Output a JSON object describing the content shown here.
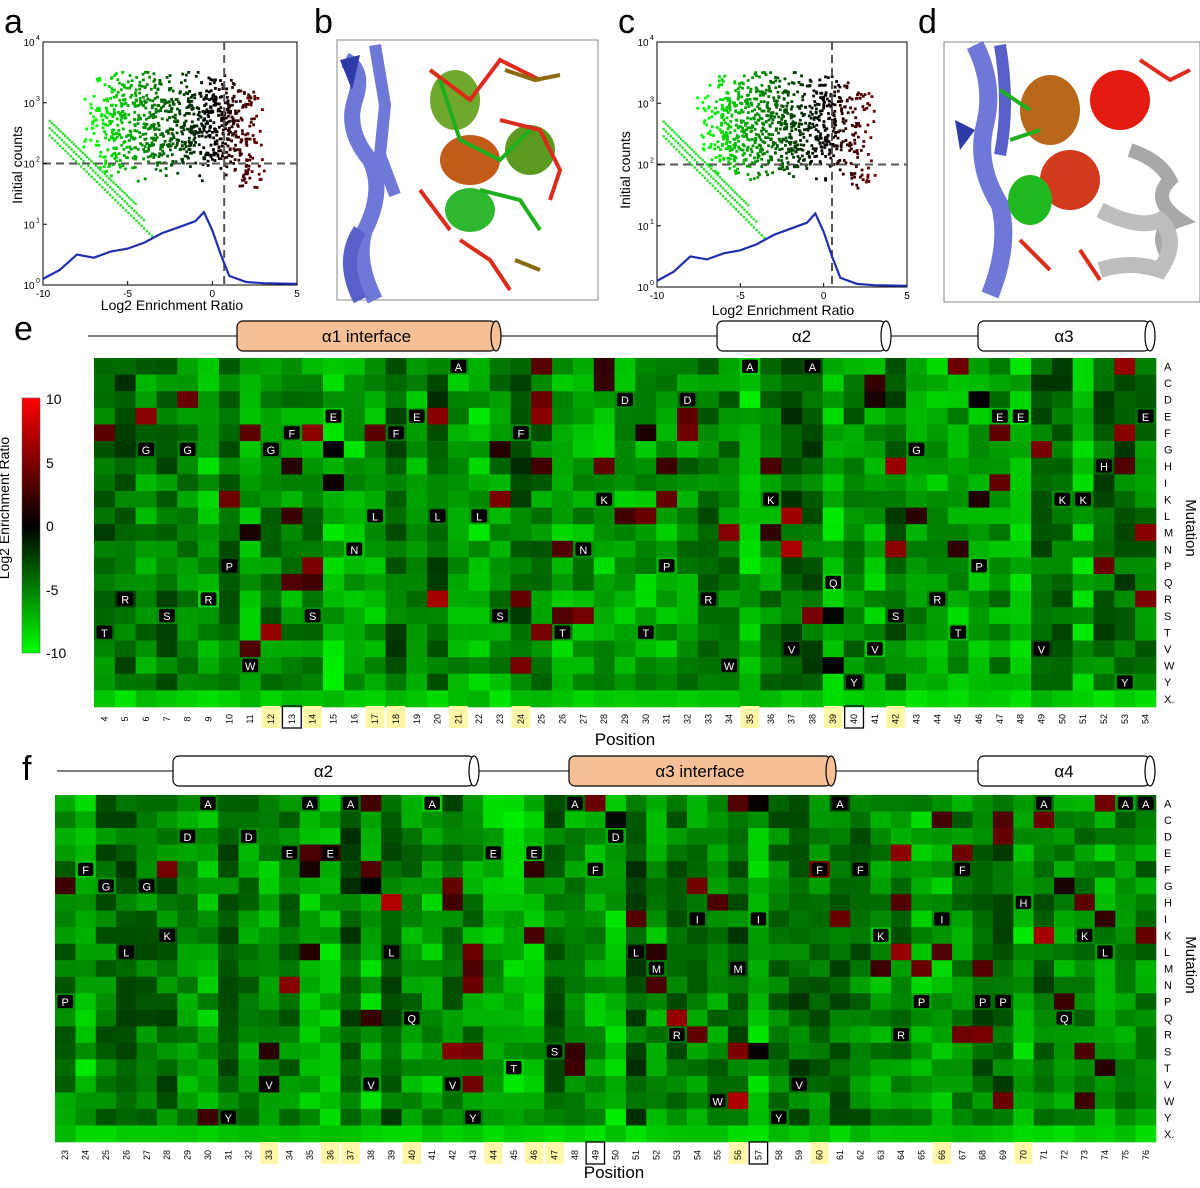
{
  "panel_labels": {
    "a": "a",
    "b": "b",
    "c": "c",
    "d": "d",
    "e": "e",
    "f": "f"
  },
  "colors": {
    "red": "#ff0000",
    "green": "#00ff00",
    "black": "#000000",
    "blue": "#1f2fb0",
    "orange": "#f7bf95",
    "yellow_highlight": "#fff7a8",
    "struct_blue": "#6f78d6",
    "struct_gray": "#a8a8a8"
  },
  "scatter_a": {
    "ylabel": "Initial counts",
    "xlabel": "Log2 Enrichment Ratio",
    "xticks": [
      "-10",
      "-5",
      "0",
      "5"
    ],
    "yticks": [
      {
        "base": "10",
        "exp": "0"
      },
      {
        "base": "10",
        "exp": "1"
      },
      {
        "base": "10",
        "exp": "2"
      },
      {
        "base": "10",
        "exp": "3"
      },
      {
        "base": "10",
        "exp": "4"
      }
    ]
  },
  "scatter_c": {
    "ylabel": "Initial counts",
    "xlabel": "Log2 Enrichment Ratio",
    "xticks": [
      "-10",
      "-5",
      "0",
      "5"
    ],
    "yticks": [
      {
        "base": "10",
        "exp": "0"
      },
      {
        "base": "10",
        "exp": "1"
      },
      {
        "base": "10",
        "exp": "2"
      },
      {
        "base": "10",
        "exp": "3"
      },
      {
        "base": "10",
        "exp": "4"
      }
    ]
  },
  "colorbar": {
    "label": "Log2 Enrichment Ratio",
    "ticks": [
      "10",
      "5",
      "0",
      "-5",
      "-10"
    ]
  },
  "mutations": [
    "A",
    "C",
    "D",
    "E",
    "F",
    "G",
    "H",
    "I",
    "K",
    "L",
    "M",
    "N",
    "P",
    "Q",
    "R",
    "S",
    "T",
    "V",
    "W",
    "Y",
    "X."
  ],
  "mutation_label": "Mutation",
  "position_label": "Position",
  "heatmap_e": {
    "helices": [
      {
        "label": "α1 interface",
        "style": "interface"
      },
      {
        "label": "α2",
        "style": "plain"
      },
      {
        "label": "α3",
        "style": "plain"
      }
    ],
    "positions": [
      "4",
      "5",
      "6",
      "7",
      "8",
      "9",
      "10",
      "11",
      "12",
      "13",
      "14",
      "15",
      "16",
      "17",
      "18",
      "19",
      "20",
      "21",
      "22",
      "23",
      "24",
      "25",
      "26",
      "27",
      "28",
      "29",
      "30",
      "31",
      "32",
      "33",
      "34",
      "35",
      "36",
      "37",
      "38",
      "39",
      "40",
      "41",
      "42",
      "43",
      "44",
      "45",
      "46",
      "47",
      "48",
      "49",
      "50",
      "51",
      "52",
      "53",
      "54"
    ],
    "highlighted": [
      "12",
      "14",
      "17",
      "18",
      "21",
      "24",
      "35",
      "39",
      "42"
    ],
    "boxed": [
      "13",
      "40"
    ],
    "wildtype": {
      "4": "T",
      "5": "R",
      "6": "G",
      "7": "S",
      "8": "G",
      "9": "R",
      "10": "P",
      "11": "W",
      "12": "G",
      "13": "F",
      "14": "S",
      "15": "E",
      "16": "N",
      "17": "L",
      "18": "F",
      "19": "E",
      "20": "L",
      "21": "A",
      "22": "L",
      "23": "S",
      "24": "F",
      "26": "T",
      "27": "N",
      "28": "K",
      "29": "D",
      "30": "T",
      "31": "P",
      "32": "D",
      "33": "R",
      "34": "W",
      "35": "A",
      "36": "K",
      "37": "V",
      "38": "A",
      "39": "Q",
      "40": "Y",
      "41": "V",
      "42": "S",
      "43": "G",
      "44": "R",
      "45": "T",
      "46": "P",
      "47": "E",
      "48": "E",
      "49": "V",
      "50": "K",
      "51": "K",
      "52": "H",
      "53": "Y",
      "54": "E"
    }
  },
  "heatmap_f": {
    "helices": [
      {
        "label": "α2",
        "style": "plain"
      },
      {
        "label": "α3 interface",
        "style": "interface"
      },
      {
        "label": "α4",
        "style": "plain"
      }
    ],
    "positions": [
      "23",
      "24",
      "25",
      "26",
      "27",
      "28",
      "29",
      "30",
      "31",
      "32",
      "33",
      "34",
      "35",
      "36",
      "37",
      "38",
      "39",
      "40",
      "41",
      "42",
      "43",
      "44",
      "45",
      "46",
      "47",
      "48",
      "49",
      "50",
      "51",
      "52",
      "53",
      "54",
      "55",
      "56",
      "57",
      "58",
      "59",
      "60",
      "61",
      "62",
      "63",
      "64",
      "65",
      "66",
      "67",
      "68",
      "69",
      "70",
      "71",
      "72",
      "73",
      "74",
      "75",
      "76"
    ],
    "highlighted": [
      "33",
      "36",
      "37",
      "40",
      "44",
      "46",
      "47",
      "56",
      "60",
      "66",
      "70"
    ],
    "boxed": [
      "49",
      "57"
    ],
    "wildtype": {
      "23": "P",
      "24": "F",
      "25": "G",
      "26": "L",
      "27": "G",
      "28": "K",
      "29": "D",
      "30": "A",
      "31": "Y",
      "32": "D",
      "33": "V",
      "34": "E",
      "35": "A",
      "36": "E",
      "37": "A",
      "38": "V",
      "39": "L",
      "40": "Q",
      "41": "A",
      "42": "V",
      "43": "Y",
      "44": "E",
      "45": "T",
      "46": "E",
      "47": "S",
      "48": "A",
      "49": "F",
      "50": "D",
      "51": "L",
      "52": "M",
      "53": "R",
      "54": "I",
      "55": "W",
      "56": "M",
      "57": "I",
      "58": "Y",
      "59": "V",
      "60": "F",
      "61": "A",
      "62": "F",
      "63": "K",
      "64": "R",
      "65": "P",
      "66": "I",
      "67": "F",
      "68": "P",
      "69": "P",
      "70": "H",
      "71": "A",
      "72": "Q",
      "73": "K",
      "74": "L",
      "75": "A",
      "76": "A"
    }
  }
}
